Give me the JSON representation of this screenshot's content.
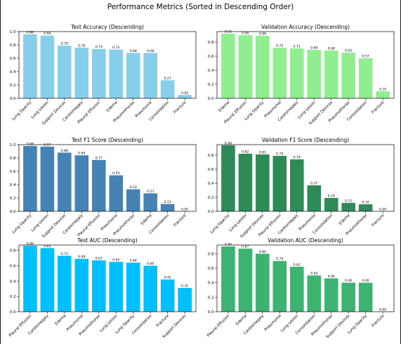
{
  "suptitle": "Performance Metrics (Sorted in Descending Order)",
  "chart_data": [
    {
      "type": "bar",
      "title": "Test Accuracy (Descending)",
      "categories": [
        "Lung Opacity",
        "Lung Lesion",
        "Support Devices",
        "Cardiomegaly",
        "Pleural Effusion",
        "Edema",
        "Pneumothorax",
        "Pneumonia",
        "Consolidation",
        "Fracture"
      ],
      "values": [
        0.96,
        0.94,
        0.79,
        0.76,
        0.74,
        0.73,
        0.68,
        0.68,
        0.27,
        0.05
      ],
      "value_labels": [
        "0.96",
        "0.94",
        "0.79",
        "0.76",
        "0.74",
        "0.73",
        "0.68",
        "0.68",
        "0.27",
        "0.05"
      ],
      "ylim": [
        0,
        1.0
      ],
      "yticks": [
        0.0,
        0.2,
        0.4,
        0.6,
        0.8,
        1.0
      ],
      "ytick_labels": [
        "0.0",
        "0.2",
        "0.4",
        "0.6",
        "0.8",
        "1.0"
      ],
      "color": "#87ceeb",
      "xlabel": "",
      "ylabel": ""
    },
    {
      "type": "bar",
      "title": "Validation Accuracy (Descending)",
      "categories": [
        "Edema",
        "Pleural Effusion",
        "Lung Opacity",
        "Pneumonia",
        "Cardiomegaly",
        "Lung Lesion",
        "Support Devices",
        "Pneumothorax",
        "Consolidation",
        "Fracture"
      ],
      "values": [
        0.92,
        0.9,
        0.89,
        0.72,
        0.71,
        0.69,
        0.68,
        0.65,
        0.57,
        0.1
      ],
      "value_labels": [
        "0.92",
        "0.90",
        "0.89",
        "0.72",
        "0.71",
        "0.69",
        "0.68",
        "0.65",
        "0.57",
        "0.10"
      ],
      "ylim": [
        0,
        0.95
      ],
      "yticks": [
        0.0,
        0.2,
        0.4,
        0.6,
        0.8
      ],
      "ytick_labels": [
        "0.0",
        "0.2",
        "0.4",
        "0.6",
        "0.8"
      ],
      "color": "#90ee90",
      "xlabel": "",
      "ylabel": ""
    },
    {
      "type": "bar",
      "title": "Test F1 Score (Descending)",
      "categories": [
        "Lung Opacity",
        "Lung Lesion",
        "Support Devices",
        "Cardiomegaly",
        "Pleural Effusion",
        "Pneumonia",
        "Pneumothorax",
        "Edema",
        "Consolidation",
        "Fracture"
      ],
      "values": [
        0.98,
        0.97,
        0.88,
        0.84,
        0.77,
        0.54,
        0.33,
        0.27,
        0.11,
        0.0
      ],
      "value_labels": [
        "0.98",
        "0.97",
        "0.88",
        "0.84",
        "0.77",
        "0.54",
        "0.33",
        "0.27",
        "0.11",
        "0.00"
      ],
      "ylim": [
        0,
        1.0
      ],
      "yticks": [
        0.0,
        0.2,
        0.4,
        0.6,
        0.8,
        1.0
      ],
      "ytick_labels": [
        "0.0",
        "0.2",
        "0.4",
        "0.6",
        "0.8",
        "1.0"
      ],
      "color": "#4682b4",
      "xlabel": "",
      "ylabel": ""
    },
    {
      "type": "bar",
      "title": "Validation F1 Score (Descending)",
      "categories": [
        "Lung Opacity",
        "Lung Lesion",
        "Support Devices",
        "Pleural Effusion",
        "Cardiomegaly",
        "Pneumonia",
        "Consolidation",
        "Edema",
        "Pneumothorax",
        "Fracture"
      ],
      "values": [
        0.94,
        0.82,
        0.81,
        0.79,
        0.74,
        0.37,
        0.19,
        0.12,
        0.1,
        0.0
      ],
      "value_labels": [
        "0.94",
        "0.82",
        "0.81",
        "0.79",
        "0.74",
        "0.37",
        "0.19",
        "0.12",
        "0.10",
        "0.00"
      ],
      "ylim": [
        0,
        0.95
      ],
      "yticks": [
        0.0,
        0.2,
        0.4,
        0.6,
        0.8
      ],
      "ytick_labels": [
        "0.0",
        "0.2",
        "0.4",
        "0.6",
        "0.8"
      ],
      "color": "#2e8b57",
      "xlabel": "",
      "ylabel": ""
    },
    {
      "type": "bar",
      "title": "Test AUC (Descending)",
      "categories": [
        "Pleural Effusion",
        "Cardiomegaly",
        "Edema",
        "Pneumonia",
        "Pneumothorax",
        "Lung Lesion",
        "Lung Opacity",
        "Consolidation",
        "Fracture",
        "Support Devices"
      ],
      "values": [
        0.86,
        0.83,
        0.73,
        0.69,
        0.67,
        0.65,
        0.64,
        0.6,
        0.42,
        0.31
      ],
      "value_labels": [
        "0.86",
        "0.83",
        "0.73",
        "0.69",
        "0.67",
        "0.65",
        "0.64",
        "0.60",
        "0.42",
        "0.31"
      ],
      "ylim": [
        0,
        0.87
      ],
      "yticks": [
        0.0,
        0.2,
        0.4,
        0.6,
        0.8
      ],
      "ytick_labels": [
        "0.0",
        "0.2",
        "0.4",
        "0.6",
        "0.8"
      ],
      "color": "#00bfff",
      "xlabel": "",
      "ylabel": ""
    },
    {
      "type": "bar",
      "title": "Validation AUC (Descending)",
      "categories": [
        "Pleural Effusion",
        "Edema",
        "Cardiomegaly",
        "Pneumonia",
        "Lung Lesion",
        "Consolidation",
        "Pneumothorax",
        "Support Devices",
        "Lung Opacity",
        "Fracture"
      ],
      "values": [
        0.9,
        0.87,
        0.8,
        0.7,
        0.62,
        0.5,
        0.46,
        0.4,
        0.4,
        0.0
      ],
      "value_labels": [
        "0.90",
        "0.87",
        "0.80",
        "0.70",
        "0.62",
        "0.50",
        "0.46",
        "0.40",
        "0.40",
        "0.00"
      ],
      "ylim": [
        0,
        0.92
      ],
      "yticks": [
        0.0,
        0.2,
        0.4,
        0.6,
        0.8
      ],
      "ytick_labels": [
        "0.0",
        "0.2",
        "0.4",
        "0.6",
        "0.8"
      ],
      "color": "#3cb371",
      "xlabel": "",
      "ylabel": ""
    }
  ]
}
